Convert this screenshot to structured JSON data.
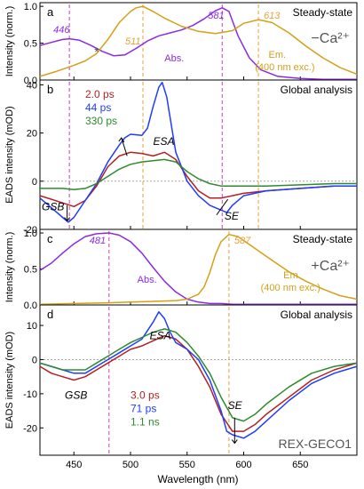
{
  "figure": {
    "xlabel": "Wavelength (nm)",
    "xlim": [
      420,
      700
    ],
    "xticks": [
      450,
      500,
      550,
      600,
      650
    ]
  },
  "colors": {
    "purple": "#8a2be2",
    "gold": "#d4a017",
    "orange": "#e8a035",
    "red": "#b22222",
    "blue": "#1f3cff",
    "green": "#2e8b2e",
    "magenta": "#d63ab0",
    "gray": "#555555",
    "dash_gray": "#9a9a9a"
  },
  "chart_data": [
    {
      "panel": "a",
      "type": "line",
      "title": "Steady-state",
      "ylabel": "Intensity (norm.)",
      "ylim": [
        0,
        1.05
      ],
      "yticks": [
        0.0,
        0.5,
        1.0
      ],
      "condition": "−Ca²⁺",
      "labels": {
        "abs": "Abs.",
        "em": "Em.",
        "em_sub": "(400 nm exc.)",
        "asterisk": "*"
      },
      "peaks": [
        {
          "text": "446",
          "x": 446,
          "color": "purple"
        },
        {
          "text": "511",
          "x": 511,
          "color": "orange"
        },
        {
          "text": "581",
          "x": 581,
          "color": "purple"
        },
        {
          "text": "613",
          "x": 613,
          "color": "orange"
        }
      ],
      "series": [
        {
          "name": "Abs.",
          "color": "purple",
          "x": [
            420,
            430,
            440,
            446,
            455,
            465,
            475,
            485,
            495,
            505,
            515,
            525,
            535,
            545,
            555,
            565,
            575,
            581,
            587,
            595,
            605,
            615,
            630,
            650,
            670,
            690,
            700
          ],
          "y": [
            0.47,
            0.51,
            0.55,
            0.56,
            0.54,
            0.47,
            0.39,
            0.33,
            0.34,
            0.43,
            0.53,
            0.6,
            0.64,
            0.68,
            0.74,
            0.83,
            0.94,
            0.98,
            0.93,
            0.6,
            0.3,
            0.14,
            0.05,
            0.02,
            0.01,
            0.01,
            0.01
          ]
        },
        {
          "name": "Em.",
          "color": "gold",
          "x": [
            420,
            435,
            450,
            460,
            470,
            480,
            490,
            500,
            505,
            511,
            520,
            530,
            545,
            560,
            575,
            590,
            600,
            613,
            625,
            640,
            655,
            670,
            685,
            700
          ],
          "y": [
            0.05,
            0.12,
            0.2,
            0.26,
            0.36,
            0.55,
            0.78,
            0.93,
            0.98,
            1.0,
            0.93,
            0.84,
            0.73,
            0.66,
            0.63,
            0.67,
            0.77,
            0.82,
            0.78,
            0.64,
            0.46,
            0.3,
            0.17,
            0.08
          ]
        }
      ]
    },
    {
      "panel": "b",
      "type": "line",
      "title": "Global analysis",
      "ylabel": "EADS intensity (mOD)",
      "ylim": [
        -20,
        42
      ],
      "yticks": [
        -20,
        0,
        20,
        40
      ],
      "labels": {
        "esa": "ESA",
        "gsb": "GSB",
        "se": "SE"
      },
      "series": [
        {
          "name": "2.0 ps",
          "color": "red",
          "x": [
            420,
            430,
            440,
            450,
            460,
            470,
            480,
            490,
            500,
            510,
            520,
            530,
            540,
            550,
            560,
            570,
            580,
            590,
            600,
            620,
            650,
            680,
            700
          ],
          "y": [
            -6,
            -7.5,
            -9,
            -10.5,
            -8,
            -2,
            6,
            10.5,
            12,
            11.5,
            10.5,
            12,
            9,
            2,
            -4,
            -7,
            -7,
            -6,
            -5,
            -4,
            -3,
            -2,
            -2
          ]
        },
        {
          "name": "44 ps",
          "color": "blue",
          "x": [
            420,
            430,
            440,
            445,
            450,
            460,
            470,
            480,
            490,
            495,
            500,
            510,
            515,
            520,
            525,
            528,
            532,
            540,
            550,
            560,
            570,
            580,
            585,
            590,
            600,
            620,
            650,
            680,
            700
          ],
          "y": [
            -7,
            -11,
            -15,
            -17,
            -15,
            -8,
            -1,
            8,
            15,
            18,
            19.5,
            19,
            22,
            31,
            39,
            41,
            35,
            12,
            0,
            -6,
            -10,
            -12,
            -13,
            -10,
            -6,
            -4,
            -3,
            -2,
            -2
          ]
        },
        {
          "name": "330 ps",
          "color": "green",
          "x": [
            420,
            430,
            440,
            450,
            460,
            470,
            480,
            490,
            500,
            510,
            520,
            530,
            540,
            550,
            560,
            570,
            580,
            590,
            600,
            620,
            650,
            680,
            700
          ],
          "y": [
            -3,
            -3,
            -3,
            -3.5,
            -3,
            -1,
            2,
            5,
            7,
            8,
            8.5,
            9,
            8,
            4,
            1,
            -1,
            -2,
            -2,
            -2,
            -2,
            -1.5,
            -1,
            -1
          ]
        }
      ]
    },
    {
      "panel": "c",
      "type": "line",
      "title": "Steady-state",
      "ylabel": "Intensity (norm.)",
      "ylim": [
        0,
        1.05
      ],
      "yticks": [
        0.0,
        0.5,
        1.0
      ],
      "condition": "+Ca²⁺",
      "labels": {
        "abs": "Abs.",
        "em": "Em.",
        "em_sub": "(400 nm exc.)"
      },
      "peaks": [
        {
          "text": "481",
          "x": 481,
          "color": "purple"
        },
        {
          "text": "587",
          "x": 587,
          "color": "orange"
        }
      ],
      "series": [
        {
          "name": "Abs.",
          "color": "purple",
          "x": [
            420,
            430,
            440,
            450,
            460,
            470,
            481,
            490,
            500,
            510,
            520,
            530,
            540,
            550,
            560,
            570,
            580,
            590,
            600,
            620,
            650,
            700
          ],
          "y": [
            0.48,
            0.58,
            0.72,
            0.85,
            0.95,
            0.99,
            1.0,
            0.97,
            0.88,
            0.72,
            0.52,
            0.33,
            0.18,
            0.08,
            0.04,
            0.02,
            0.02,
            0.01,
            0.01,
            0.01,
            0.01,
            0.01
          ]
        },
        {
          "name": "Em.",
          "color": "gold",
          "x": [
            420,
            450,
            480,
            500,
            520,
            540,
            550,
            560,
            565,
            570,
            575,
            580,
            587,
            595,
            605,
            615,
            625,
            640,
            655,
            670,
            685,
            700
          ],
          "y": [
            0.01,
            0.02,
            0.03,
            0.04,
            0.05,
            0.06,
            0.08,
            0.15,
            0.25,
            0.45,
            0.7,
            0.88,
            0.98,
            0.95,
            0.84,
            0.73,
            0.62,
            0.46,
            0.33,
            0.22,
            0.13,
            0.08
          ]
        }
      ]
    },
    {
      "panel": "d",
      "type": "line",
      "title": "Global analysis",
      "ylabel": "EADS intensity (mOD)",
      "ylim": [
        -28,
        16
      ],
      "yticks": [
        -20,
        -10,
        0,
        10
      ],
      "labels": {
        "esa": "ESA",
        "gsb": "GSB",
        "se": "SE",
        "protein": "REX-GECO1"
      },
      "series": [
        {
          "name": "3.0 ps",
          "color": "red",
          "x": [
            420,
            430,
            440,
            450,
            460,
            470,
            480,
            490,
            500,
            510,
            520,
            530,
            540,
            550,
            560,
            570,
            580,
            590,
            600,
            610,
            620,
            640,
            660,
            680,
            700
          ],
          "y": [
            -2,
            -4,
            -5,
            -6,
            -5,
            -3,
            -1,
            1,
            3,
            4,
            5.5,
            7,
            6,
            3,
            -2,
            -8,
            -16,
            -21,
            -21,
            -19,
            -16,
            -11,
            -6,
            -3,
            -1
          ]
        },
        {
          "name": "71 ps",
          "color": "blue",
          "x": [
            420,
            430,
            440,
            450,
            460,
            470,
            480,
            490,
            500,
            510,
            520,
            525,
            530,
            535,
            540,
            550,
            560,
            570,
            580,
            585,
            590,
            600,
            610,
            620,
            640,
            660,
            680,
            700
          ],
          "y": [
            -1,
            -2,
            -3,
            -4,
            -4,
            -2,
            0,
            2,
            4,
            6,
            11,
            14,
            12,
            8,
            5,
            3,
            0,
            -6,
            -15,
            -21,
            -22,
            -23,
            -21,
            -18,
            -12,
            -7,
            -4,
            -2
          ]
        },
        {
          "name": "1.1 ns",
          "color": "green",
          "x": [
            420,
            430,
            440,
            450,
            460,
            470,
            480,
            490,
            500,
            510,
            520,
            530,
            540,
            550,
            560,
            570,
            580,
            590,
            600,
            610,
            620,
            640,
            660,
            680,
            700
          ],
          "y": [
            -1,
            -2,
            -3,
            -3,
            -3,
            -1,
            1,
            3,
            5,
            6.5,
            8,
            9,
            8,
            5,
            1,
            -4,
            -11,
            -17,
            -18,
            -16,
            -13,
            -8,
            -4,
            -2,
            -1
          ]
        }
      ]
    }
  ]
}
